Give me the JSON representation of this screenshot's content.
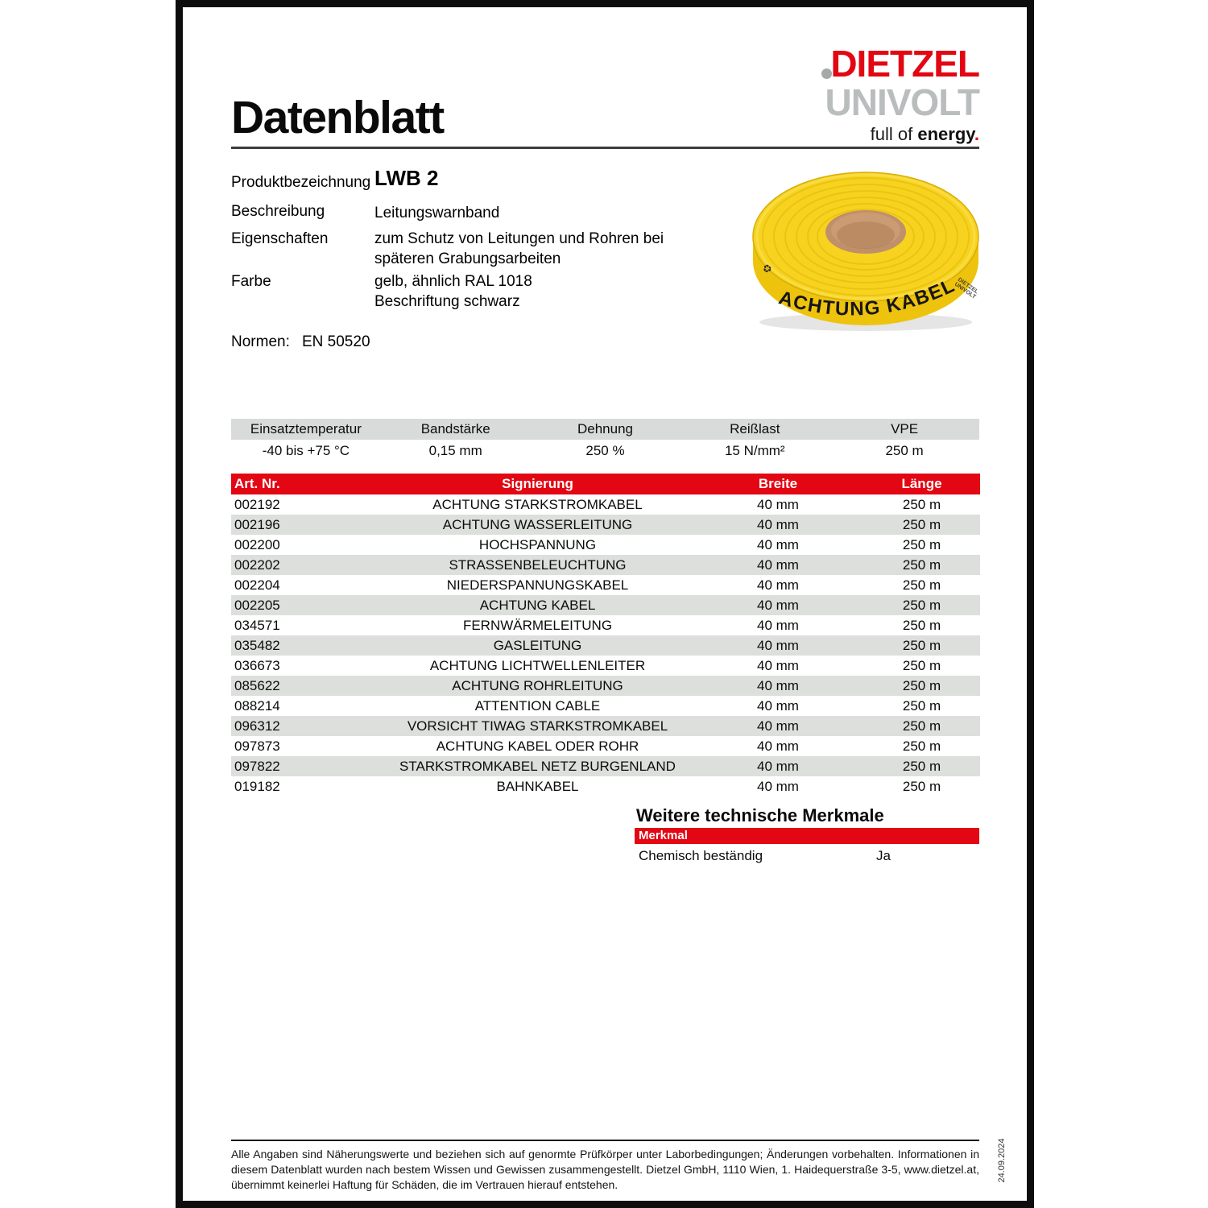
{
  "page": {
    "title": "Datenblatt",
    "date_sidebar": "24.09.2024"
  },
  "logo": {
    "line1": "DIETZEL",
    "line2": "UNIVOLT",
    "tagline_prefix": "full of ",
    "tagline_bold": "energy",
    "tagline_dot": "."
  },
  "product": {
    "fields": [
      {
        "label": "Produktbezeichnung",
        "value": "LWB 2"
      },
      {
        "label": "Beschreibung",
        "value": "Leitungswarnband"
      },
      {
        "label": "Eigenschaften",
        "value": "zum Schutz von Leitungen und Rohren bei\nspäteren Grabungsarbeiten"
      },
      {
        "label": "Farbe",
        "value": "gelb, ähnlich RAL 1018\nBeschriftung schwarz"
      }
    ],
    "normen_label": "Normen:",
    "normen_value": "EN 50520"
  },
  "roll_image": {
    "label_text": "ACHTUNG KABEL",
    "side_line1": "DIETZEL",
    "side_line2": "UNIVOLT",
    "recycle_icon": "♻"
  },
  "specs": {
    "headers": [
      "Einsatztemperatur",
      "Bandstärke",
      "Dehnung",
      "Reißlast",
      "VPE"
    ],
    "values": [
      "-40 bis +75 °C",
      "0,15 mm",
      "250 %",
      "15 N/mm²",
      "250 m"
    ]
  },
  "table": {
    "headers": {
      "art": "Art. Nr.",
      "sign": "Signierung",
      "breite": "Breite",
      "laenge": "Länge"
    },
    "rows": [
      {
        "art": "002192",
        "sign": "ACHTUNG STARKSTROMKABEL",
        "breite": "40 mm",
        "laenge": "250 m"
      },
      {
        "art": "002196",
        "sign": "ACHTUNG WASSERLEITUNG",
        "breite": "40 mm",
        "laenge": "250 m"
      },
      {
        "art": "002200",
        "sign": "HOCHSPANNUNG",
        "breite": "40 mm",
        "laenge": "250 m"
      },
      {
        "art": "002202",
        "sign": "STRASSENBELEUCHTUNG",
        "breite": "40 mm",
        "laenge": "250 m"
      },
      {
        "art": "002204",
        "sign": "NIEDERSPANNUNGSKABEL",
        "breite": "40 mm",
        "laenge": "250 m"
      },
      {
        "art": "002205",
        "sign": "ACHTUNG KABEL",
        "breite": "40 mm",
        "laenge": "250 m"
      },
      {
        "art": "034571",
        "sign": "FERNWÄRMELEITUNG",
        "breite": "40 mm",
        "laenge": "250 m"
      },
      {
        "art": "035482",
        "sign": "GASLEITUNG",
        "breite": "40 mm",
        "laenge": "250 m"
      },
      {
        "art": "036673",
        "sign": "ACHTUNG LICHTWELLENLEITER",
        "breite": "40 mm",
        "laenge": "250 m"
      },
      {
        "art": "085622",
        "sign": "ACHTUNG ROHRLEITUNG",
        "breite": "40 mm",
        "laenge": "250 m"
      },
      {
        "art": "088214",
        "sign": "ATTENTION CABLE",
        "breite": "40 mm",
        "laenge": "250 m"
      },
      {
        "art": "096312",
        "sign": "VORSICHT TIWAG STARKSTROMKABEL",
        "breite": "40 mm",
        "laenge": "250 m"
      },
      {
        "art": "097873",
        "sign": "ACHTUNG KABEL ODER ROHR",
        "breite": "40 mm",
        "laenge": "250 m"
      },
      {
        "art": "097822",
        "sign": "STARKSTROMKABEL NETZ BURGENLAND",
        "breite": "40 mm",
        "laenge": "250 m"
      },
      {
        "art": "019182",
        "sign": "BAHNKABEL",
        "breite": "40 mm",
        "laenge": "250 m"
      }
    ]
  },
  "merkmale": {
    "heading": "Weitere technische Merkmale",
    "column_header": "Merkmal",
    "rows": [
      {
        "label": "Chemisch beständig",
        "value": "Ja"
      }
    ]
  },
  "footer": {
    "text": "Alle Angaben sind Näherungswerte und beziehen sich auf genormte Prüfkörper unter Laborbedingungen; Änderungen vorbehalten. Informationen in diesem Datenblatt wurden nach bestem Wissen und Gewissen zusammengestellt. Dietzel GmbH, 1110 Wien, 1. Haidequerstraße 3-5, www.dietzel.at, übernimmt keinerlei Haftung für Schäden, die im Vertrauen hierauf entstehen."
  },
  "colors": {
    "brand_red": "#e30613",
    "logo_gray": "#b9bdbd",
    "row_stripe": "#dcdfdc",
    "specs_header_bg": "#d8dbd9",
    "tape_yellow": "#f7d31f",
    "frame_black": "#0d0d0d"
  }
}
